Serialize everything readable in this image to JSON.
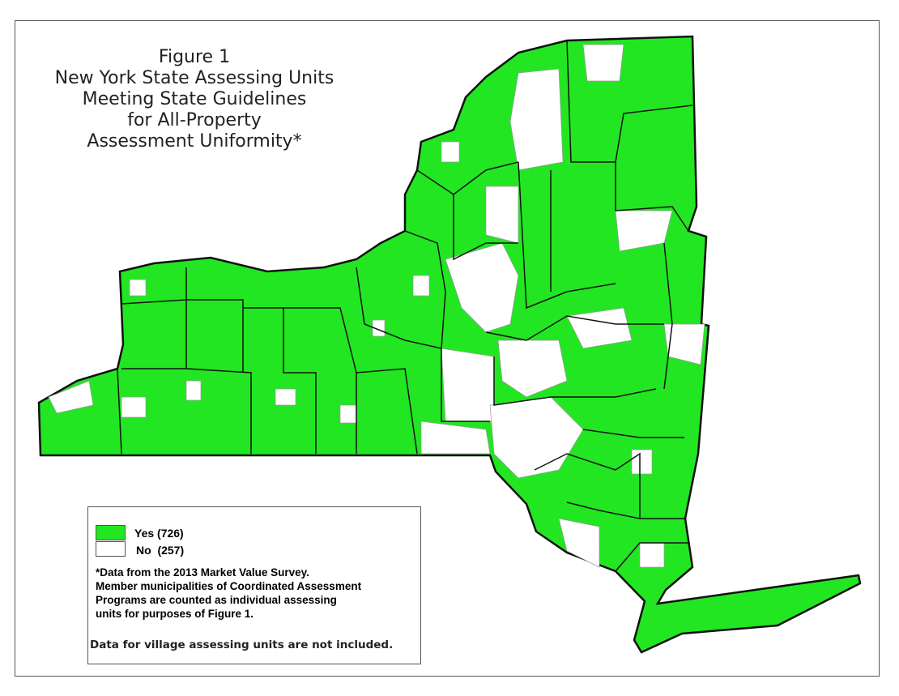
{
  "title": {
    "lines": [
      "Figure 1",
      "New York State Assessing Units",
      "Meeting State Guidelines",
      "for All-Property",
      "Assessment Uniformity*"
    ]
  },
  "map": {
    "region": "New York State",
    "colors": {
      "yes": "#22e622",
      "no": "#ffffff",
      "county_border": "#111111",
      "town_border": "#888888"
    }
  },
  "legend": {
    "items": [
      {
        "label": "Yes (726)",
        "color": "#22e622"
      },
      {
        "label": "No  (257)",
        "color": "#ffffff"
      }
    ],
    "note_lines": [
      "*Data from the 2013 Market Value Survey.",
      "Member municipalities of Coordinated Assessment",
      "Programs are counted as individual assessing",
      "units for purposes of Figure 1."
    ],
    "village_note": "Data for village assessing units are not included."
  }
}
